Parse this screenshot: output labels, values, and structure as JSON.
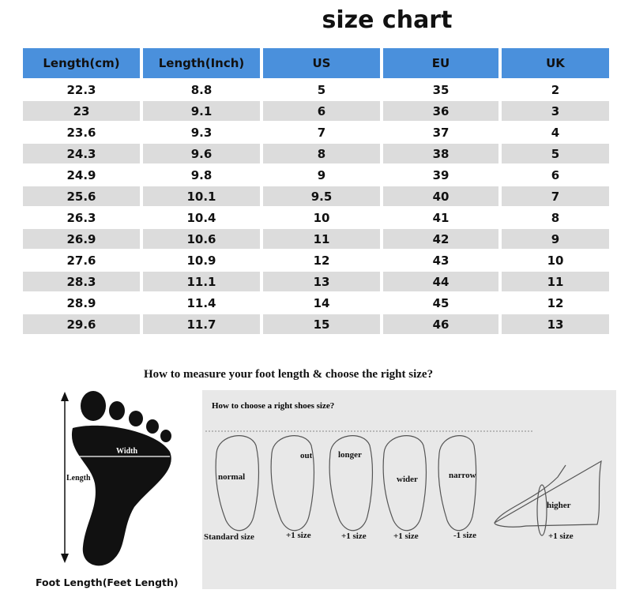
{
  "title": "size chart",
  "table": {
    "headers": [
      "Length(cm)",
      "Length(Inch)",
      "US",
      "EU",
      "UK"
    ],
    "rows": [
      [
        "22.3",
        "8.8",
        "5",
        "35",
        "2"
      ],
      [
        "23",
        "9.1",
        "6",
        "36",
        "3"
      ],
      [
        "23.6",
        "9.3",
        "7",
        "37",
        "4"
      ],
      [
        "24.3",
        "9.6",
        "8",
        "38",
        "5"
      ],
      [
        "24.9",
        "9.8",
        "9",
        "39",
        "6"
      ],
      [
        "25.6",
        "10.1",
        "9.5",
        "40",
        "7"
      ],
      [
        "26.3",
        "10.4",
        "10",
        "41",
        "8"
      ],
      [
        "26.9",
        "10.6",
        "11",
        "42",
        "9"
      ],
      [
        "27.6",
        "10.9",
        "12",
        "43",
        "10"
      ],
      [
        "28.3",
        "11.1",
        "13",
        "44",
        "11"
      ],
      [
        "28.9",
        "11.4",
        "14",
        "45",
        "12"
      ],
      [
        "29.6",
        "11.7",
        "15",
        "46",
        "13"
      ]
    ],
    "header_color": "#4a90dc",
    "alt_row_color": "#dcdcdc"
  },
  "measure": {
    "title": "How to measure your foot length & choose the right size?",
    "width_label": "Width",
    "length_label": "Length",
    "caption": "Foot Length(Feet Length)"
  },
  "choose": {
    "title": "How to choose a right shoes size?",
    "feet": [
      {
        "label": "normal",
        "size": "Standard size"
      },
      {
        "label": "out",
        "size": "+1 size"
      },
      {
        "label": "longer",
        "size": "+1 size"
      },
      {
        "label": "wider",
        "size": "+1 size"
      },
      {
        "label": "narrow",
        "size": "-1 size"
      },
      {
        "label": "higher",
        "size": "+1 size"
      }
    ]
  }
}
